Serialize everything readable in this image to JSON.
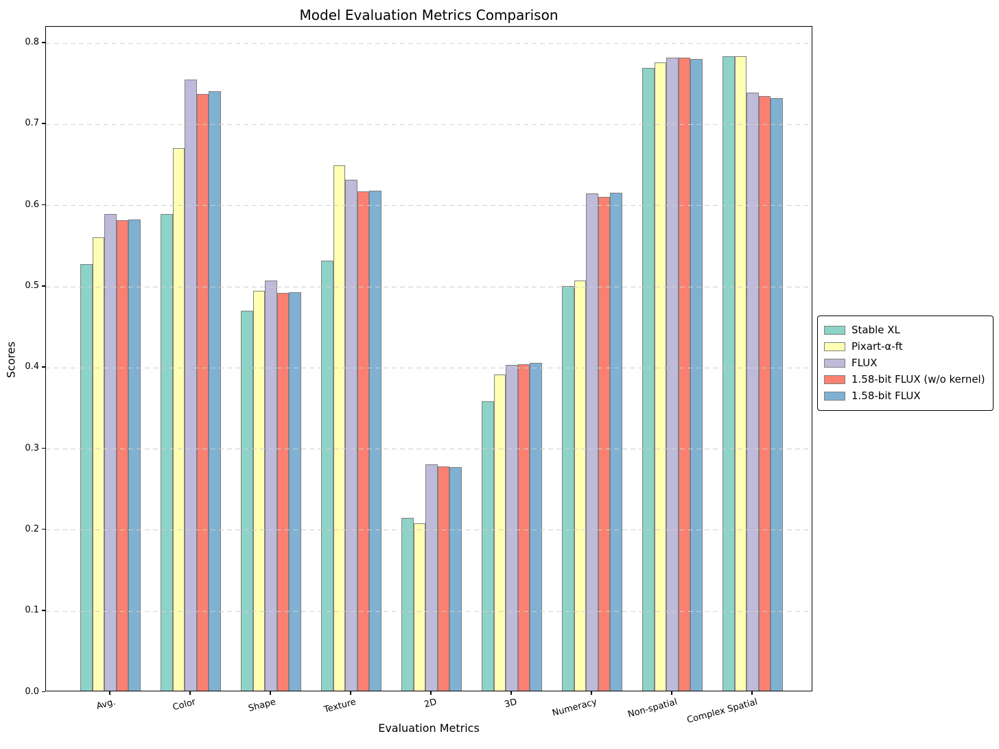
{
  "title": "Model Evaluation Metrics Comparison",
  "axes": {
    "xlabel": "Evaluation Metrics",
    "ylabel": "Scores",
    "ytick_labels": [
      "0.0",
      "0.1",
      "0.2",
      "0.3",
      "0.4",
      "0.5",
      "0.6",
      "0.7",
      "0.8"
    ]
  },
  "chart_data": {
    "type": "bar",
    "title": "Model Evaluation Metrics Comparison",
    "xlabel": "Evaluation Metrics",
    "ylabel": "Scores",
    "categories": [
      "Avg.",
      "Color",
      "Shape",
      "Texture",
      "2D",
      "3D",
      "Numeracy",
      "Non-spatial",
      "Complex Spatial"
    ],
    "series": [
      {
        "name": "Stable XL",
        "color": "#8dd3c7",
        "values": [
          0.5255,
          0.5879,
          0.4687,
          0.5299,
          0.2133,
          0.3566,
          0.4988,
          0.7673,
          0.7817
        ]
      },
      {
        "name": "Pixart-α-ft",
        "color": "#ffffb3",
        "values": [
          0.5586,
          0.669,
          0.4927,
          0.6477,
          0.2064,
          0.3901,
          0.5058,
          0.7747,
          0.7823
        ]
      },
      {
        "name": "FLUX",
        "color": "#bebada",
        "values": [
          0.5874,
          0.7529,
          0.5056,
          0.6299,
          0.2788,
          0.4014,
          0.6131,
          0.7807,
          0.7371
        ]
      },
      {
        "name": "1.58-bit FLUX (w/o kernel)",
        "color": "#fb8072",
        "values": [
          0.5803,
          0.7358,
          0.49,
          0.6158,
          0.2768,
          0.4021,
          0.6084,
          0.7807,
          0.7328
        ]
      },
      {
        "name": "1.58-bit FLUX",
        "color": "#80b1d3",
        "values": [
          0.581,
          0.739,
          0.491,
          0.6162,
          0.2757,
          0.4043,
          0.6135,
          0.7784,
          0.73
        ]
      }
    ],
    "ylim": [
      0.0,
      0.82
    ],
    "yticks": [
      0.0,
      0.1,
      0.2,
      0.3,
      0.4,
      0.5,
      0.6,
      0.7,
      0.8
    ],
    "grid": "horizontal dashed, drawn above bars",
    "gridline_color": "#cfcfcf",
    "bar_edge_color": "#7f7f7f",
    "legend_position": "center right, outside axes"
  }
}
